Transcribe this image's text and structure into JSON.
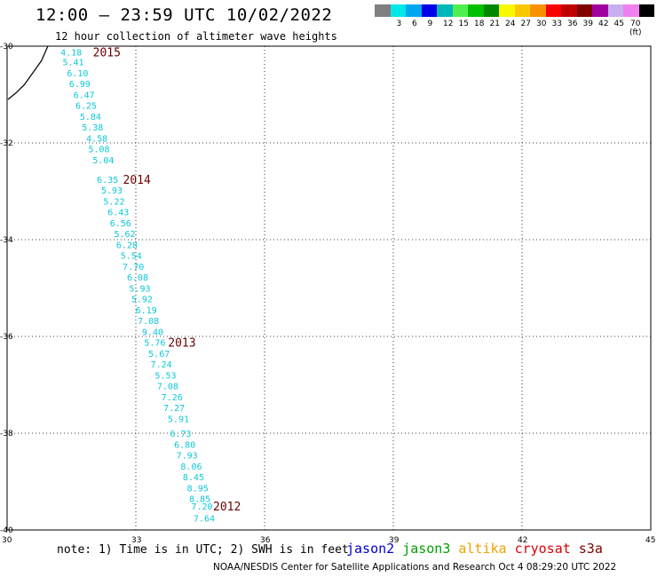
{
  "header": {
    "title": "12:00 – 23:59 UTC 10/02/2022",
    "subtitle": "12 hour collection of altimeter wave heights"
  },
  "legend": {
    "swatches": [
      {
        "color": "#808080",
        "label": ""
      },
      {
        "color": "#00e8e8",
        "label": "3"
      },
      {
        "color": "#00a8f0",
        "label": "6"
      },
      {
        "color": "#0000e8",
        "label": "9"
      },
      {
        "color": "#00b8b8",
        "label": "12"
      },
      {
        "color": "#50f050",
        "label": "15"
      },
      {
        "color": "#00c000",
        "label": "18"
      },
      {
        "color": "#008800",
        "label": "21"
      },
      {
        "color": "#f8f800",
        "label": "24"
      },
      {
        "color": "#f8c800",
        "label": "27"
      },
      {
        "color": "#f89000",
        "label": "30"
      },
      {
        "color": "#f80000",
        "label": "33"
      },
      {
        "color": "#c00000",
        "label": "36"
      },
      {
        "color": "#800000",
        "label": "39"
      },
      {
        "color": "#a000a0",
        "label": "42"
      },
      {
        "color": "#c8b0f0",
        "label": "45"
      },
      {
        "color": "#f080f0",
        "label": "70 (ft)"
      },
      {
        "color": "#000000",
        "label": ""
      }
    ]
  },
  "axes": {
    "x_ticks": [
      "30",
      "33",
      "36",
      "39",
      "42",
      "45"
    ],
    "y_ticks": [
      "-30",
      "-32",
      "-34",
      "-36",
      "-38",
      "-40"
    ]
  },
  "wave_labels": [
    {
      "lon": 31.45,
      "lat": -30.12,
      "value": "4.18"
    },
    {
      "lon": 31.5,
      "lat": -30.32,
      "value": "5.41"
    },
    {
      "lon": 31.6,
      "lat": -30.55,
      "value": "6.10"
    },
    {
      "lon": 31.65,
      "lat": -30.77,
      "value": "6.99"
    },
    {
      "lon": 31.75,
      "lat": -31.0,
      "value": "6.47"
    },
    {
      "lon": 31.8,
      "lat": -31.22,
      "value": "6.25"
    },
    {
      "lon": 31.9,
      "lat": -31.45,
      "value": "5.84"
    },
    {
      "lon": 31.95,
      "lat": -31.67,
      "value": "5.38"
    },
    {
      "lon": 32.05,
      "lat": -31.9,
      "value": "4.58"
    },
    {
      "lon": 32.1,
      "lat": -32.12,
      "value": "5.08"
    },
    {
      "lon": 32.2,
      "lat": -32.35,
      "value": "5.04"
    },
    {
      "lon": 32.3,
      "lat": -32.75,
      "value": "6.35"
    },
    {
      "lon": 32.4,
      "lat": -32.97,
      "value": "5.93"
    },
    {
      "lon": 32.45,
      "lat": -33.2,
      "value": "5.22"
    },
    {
      "lon": 32.55,
      "lat": -33.42,
      "value": "6.43"
    },
    {
      "lon": 32.6,
      "lat": -33.65,
      "value": "6.56"
    },
    {
      "lon": 32.7,
      "lat": -33.87,
      "value": "5.62"
    },
    {
      "lon": 32.75,
      "lat": -34.1,
      "value": "6.28"
    },
    {
      "lon": 32.85,
      "lat": -34.32,
      "value": "5.54"
    },
    {
      "lon": 32.9,
      "lat": -34.55,
      "value": "7.70"
    },
    {
      "lon": 33.0,
      "lat": -34.77,
      "value": "6.08"
    },
    {
      "lon": 33.05,
      "lat": -35.0,
      "value": "5.93"
    },
    {
      "lon": 33.1,
      "lat": -35.22,
      "value": "5.92"
    },
    {
      "lon": 33.2,
      "lat": -35.45,
      "value": "6.19"
    },
    {
      "lon": 33.25,
      "lat": -35.67,
      "value": "7.08"
    },
    {
      "lon": 33.35,
      "lat": -35.9,
      "value": "9.40"
    },
    {
      "lon": 33.4,
      "lat": -36.12,
      "value": "5.76"
    },
    {
      "lon": 33.5,
      "lat": -36.35,
      "value": "5.67"
    },
    {
      "lon": 33.55,
      "lat": -36.57,
      "value": "7.24"
    },
    {
      "lon": 33.65,
      "lat": -36.8,
      "value": "5.53"
    },
    {
      "lon": 33.7,
      "lat": -37.02,
      "value": "7.08"
    },
    {
      "lon": 33.8,
      "lat": -37.25,
      "value": "7.26"
    },
    {
      "lon": 33.85,
      "lat": -37.47,
      "value": "7.27"
    },
    {
      "lon": 33.95,
      "lat": -37.7,
      "value": "5.91"
    },
    {
      "lon": 34.0,
      "lat": -38.0,
      "value": "6.73"
    },
    {
      "lon": 34.1,
      "lat": -38.23,
      "value": "6.80"
    },
    {
      "lon": 34.15,
      "lat": -38.45,
      "value": "7.93"
    },
    {
      "lon": 34.25,
      "lat": -38.68,
      "value": "8.06"
    },
    {
      "lon": 34.3,
      "lat": -38.9,
      "value": "8.45"
    },
    {
      "lon": 34.4,
      "lat": -39.13,
      "value": "8.95"
    },
    {
      "lon": 34.45,
      "lat": -39.35,
      "value": "8.85"
    },
    {
      "lon": 34.5,
      "lat": -39.5,
      "value": "7.20"
    },
    {
      "lon": 34.55,
      "lat": -39.75,
      "value": "7.64"
    }
  ],
  "year_labels": [
    {
      "lon": 32.0,
      "lat": -30.12,
      "text": "2015"
    },
    {
      "lon": 32.7,
      "lat": -32.75,
      "text": "2014"
    },
    {
      "lon": 33.75,
      "lat": -36.12,
      "text": "2013"
    },
    {
      "lon": 34.8,
      "lat": -39.5,
      "text": "2012"
    }
  ],
  "coastline": [
    [
      30.95,
      -30.0
    ],
    [
      30.8,
      -30.3
    ],
    [
      30.6,
      -30.55
    ],
    [
      30.4,
      -30.8
    ],
    [
      30.2,
      -30.97
    ],
    [
      30.02,
      -31.1
    ]
  ],
  "colors": {
    "label": "#0cc8d8",
    "year": "#6b0000",
    "coast": "#000000"
  },
  "footer": {
    "note": "note: 1) Time is in UTC; 2) SWH is in feet",
    "credit": "NOAA/NESDIS Center for Satellite Applications and Research   Oct  4 08:29:20 UTC 2022"
  },
  "satellites": [
    {
      "name": "jason2",
      "color": "#0000d0"
    },
    {
      "name": "jason3",
      "color": "#00a000"
    },
    {
      "name": "altika",
      "color": "#f0a000"
    },
    {
      "name": "cryosat",
      "color": "#e00000"
    },
    {
      "name": "s3a",
      "color": "#800000"
    }
  ]
}
